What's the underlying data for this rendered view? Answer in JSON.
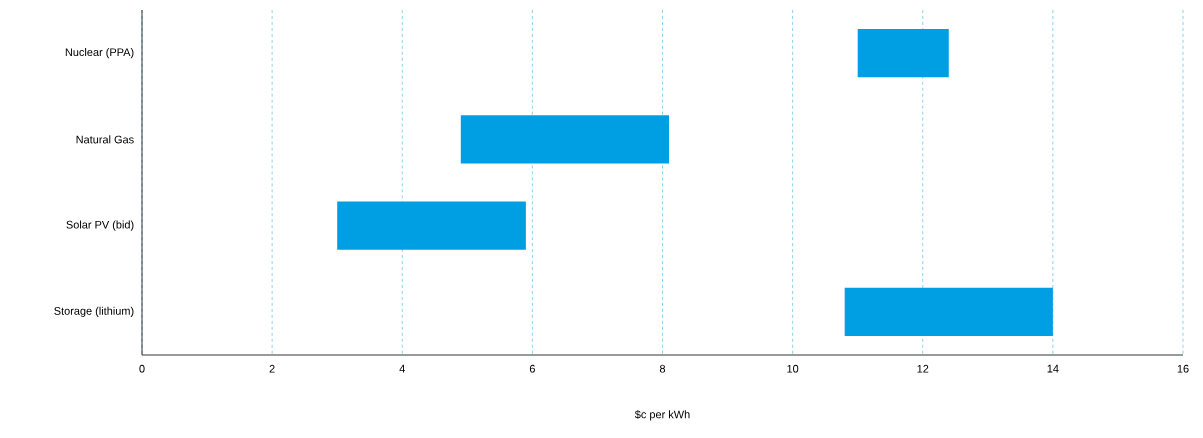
{
  "chart_data": {
    "type": "bar",
    "orientation": "horizontal",
    "xlabel": "$c per kWh",
    "categories": [
      "Nuclear (PPA)",
      "Natural Gas",
      "Solar PV (bid)",
      "Storage (lithium)"
    ],
    "base": [
      11,
      4.9,
      3.0,
      10.8
    ],
    "values": [
      1.4,
      3.2,
      2.9,
      3.2
    ],
    "color": "#009fe3",
    "xlim": [
      0,
      16
    ],
    "xticks": [
      0,
      2,
      4,
      6,
      8,
      10,
      12,
      14,
      16
    ],
    "grid": "x"
  }
}
